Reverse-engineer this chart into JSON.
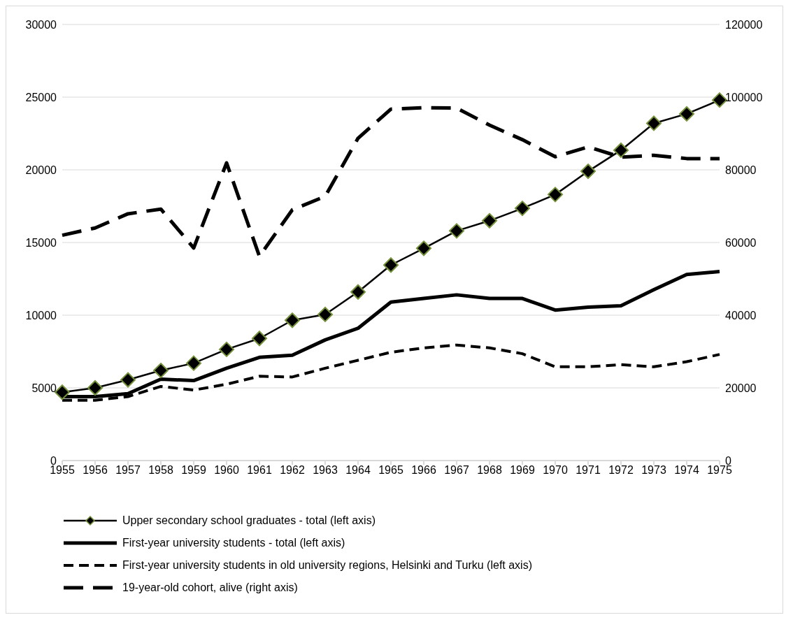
{
  "chart_data": {
    "type": "line",
    "categories": [
      "1955",
      "1956",
      "1957",
      "1958",
      "1959",
      "1960",
      "1961",
      "1962",
      "1963",
      "1964",
      "1965",
      "1966",
      "1967",
      "1968",
      "1969",
      "1970",
      "1971",
      "1972",
      "1973",
      "1974",
      "1975"
    ],
    "series": [
      {
        "name": "Upper secondary school graduates - total (left axis)",
        "color": "#000000",
        "marker": "diamond",
        "line_style": "solid",
        "values": [
          4700,
          5000,
          5550,
          6200,
          6700,
          7650,
          8400,
          9650,
          10050,
          11600,
          13450,
          14600,
          15800,
          16500,
          17350,
          18300,
          19900,
          21350,
          23200,
          23850,
          24800
        ]
      },
      {
        "name": "First-year university students - total (left axis)",
        "color": "#000000",
        "marker": "none",
        "line_style": "solid",
        "values": [
          4400,
          4400,
          4600,
          5600,
          5500,
          6350,
          7100,
          7250,
          8300,
          9100,
          10900,
          11150,
          11400,
          11150,
          11150,
          10350,
          10550,
          10650,
          11750,
          12800,
          13000
        ]
      },
      {
        "name": "First-year university students in old university regions, Helsinki and Turku (left axis)",
        "color": "#000000",
        "marker": "none",
        "line_style": "dashed",
        "values": [
          4150,
          4150,
          4400,
          5100,
          4850,
          5250,
          5800,
          5750,
          6350,
          6900,
          7450,
          7750,
          7950,
          7750,
          7350,
          6450,
          6450,
          6600,
          6450,
          6800,
          7300
        ]
      },
      {
        "name": "19-year-old cohort, alive (right axis)",
        "color": "#000000",
        "marker": "none",
        "line_style": "dashed",
        "axis": "y2",
        "values": [
          62000,
          64000,
          67900,
          69200,
          58500,
          81900,
          56200,
          69000,
          72700,
          88700,
          96700,
          97100,
          97000,
          92300,
          88300,
          83600,
          86300,
          83500,
          84000,
          83100,
          83100
        ]
      }
    ],
    "ylim": [
      0,
      30000
    ],
    "yticks": [
      0,
      5000,
      10000,
      15000,
      20000,
      25000,
      30000
    ],
    "y2lim": [
      0,
      120000
    ],
    "y2ticks": [
      0,
      20000,
      40000,
      60000,
      80000,
      100000,
      120000
    ],
    "grid": "y",
    "legend": "bottom"
  }
}
